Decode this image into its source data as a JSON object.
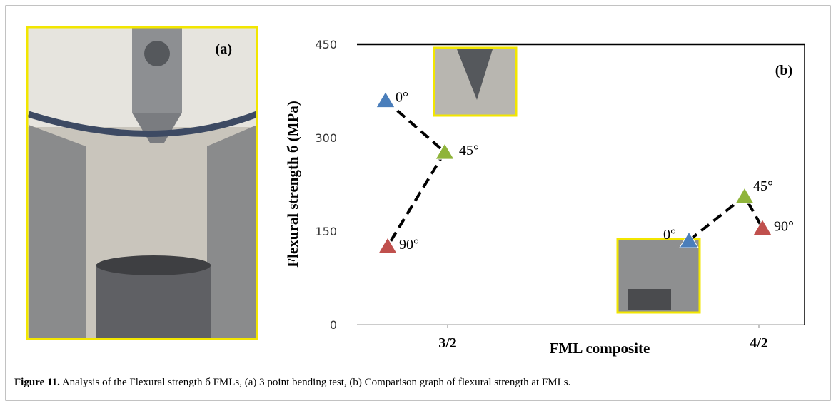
{
  "photo": {
    "label": "(a)"
  },
  "chart_data": {
    "type": "scatter",
    "panel_label": "(b)",
    "ylabel": "Flexural strength б (MPa)",
    "xlabel": "FML composite",
    "categories": [
      "3/2",
      "4/2"
    ],
    "series": [
      {
        "name": "0°",
        "color": "#4a7ebb",
        "values": [
          360,
          135
        ]
      },
      {
        "name": "45°",
        "color": "#8fb43a",
        "values": [
          277,
          206
        ]
      },
      {
        "name": "90°",
        "color": "#c0504d",
        "values": [
          126,
          155
        ]
      }
    ],
    "ylim": [
      0,
      450
    ],
    "yticks": [
      0,
      150,
      300,
      450
    ]
  },
  "caption": {
    "label": "Figure 11.",
    "text": " Analysis of the Flexural strength б FMLs, (a) 3 point bending test, (b) Comparison graph of flexural strength at FMLs."
  }
}
